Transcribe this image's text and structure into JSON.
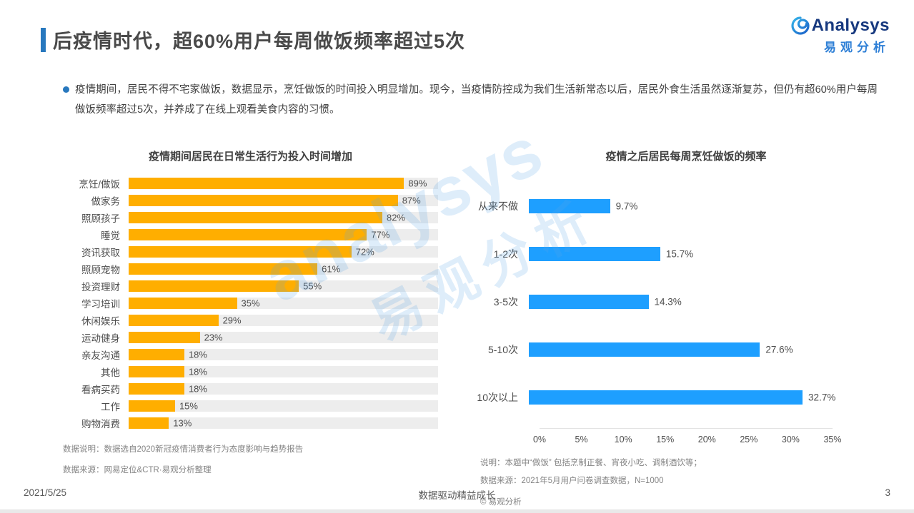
{
  "page": {
    "title": "后疫情时代，超60%用户每周做饭频率超过5次",
    "footer_date": "2021/5/25",
    "footer_slogan": "数据驱动精益成长",
    "footer_page": "3"
  },
  "logo": {
    "brand": "Analysys",
    "brand_cn": "易观分析"
  },
  "intro": "疫情期间，居民不得不宅家做饭，数据显示，烹饪做饭的时间投入明显增加。现今，当疫情防控成为我们生活新常态以后，居民外食生活虽然逐渐复苏，但仍有超60%用户每周做饭频率超过5次，并养成了在线上观看美食内容的习惯。",
  "watermark": {
    "line1": "analysys",
    "line2": "易观分析"
  },
  "colors": {
    "accent_blue": "#2878BE",
    "bar_orange": "#FFAE00",
    "bar_blue": "#1E9FFF",
    "track_gray": "#EDEDED"
  },
  "chart_data": [
    {
      "type": "bar",
      "orientation": "horizontal",
      "title": "疫情期间居民在日常生活行为投入时间增加",
      "categories": [
        "烹饪/做饭",
        "做家务",
        "照顾孩子",
        "睡觉",
        "资讯获取",
        "照顾宠物",
        "投资理财",
        "学习培训",
        "休闲娱乐",
        "运动健身",
        "亲友沟通",
        "其他",
        "看病买药",
        "工作",
        "购物消费"
      ],
      "values": [
        89,
        87,
        82,
        77,
        72,
        61,
        55,
        35,
        29,
        23,
        18,
        18,
        18,
        15,
        13
      ],
      "unit": "%",
      "xlim": [
        0,
        100
      ],
      "grid": false,
      "bar_color": "#FFAE00",
      "track_color": "#EDEDED",
      "notes": [
        "数据说明：数据选自2020新冠疫情消费者行为态度影响与趋势报告",
        "数据来源：网易定位&CTR·易观分析整理"
      ]
    },
    {
      "type": "bar",
      "orientation": "horizontal",
      "title": "疫情之后居民每周烹饪做饭的频率",
      "categories": [
        "从来不做",
        "1-2次",
        "3-5次",
        "5-10次",
        "10次以上"
      ],
      "values": [
        9.7,
        15.7,
        14.3,
        27.6,
        32.7
      ],
      "unit": "%",
      "xlim": [
        0,
        35
      ],
      "ticks": [
        "0%",
        "5%",
        "10%",
        "15%",
        "20%",
        "25%",
        "30%",
        "35%"
      ],
      "grid": false,
      "bar_color": "#1E9FFF",
      "notes": [
        "说明：本题中“做饭” 包括烹制正餐、宵夜小吃、调制酒饮等；",
        "数据来源：2021年5月用户问卷调查数据，N=1000"
      ],
      "copyright": "© 易观分析"
    }
  ]
}
